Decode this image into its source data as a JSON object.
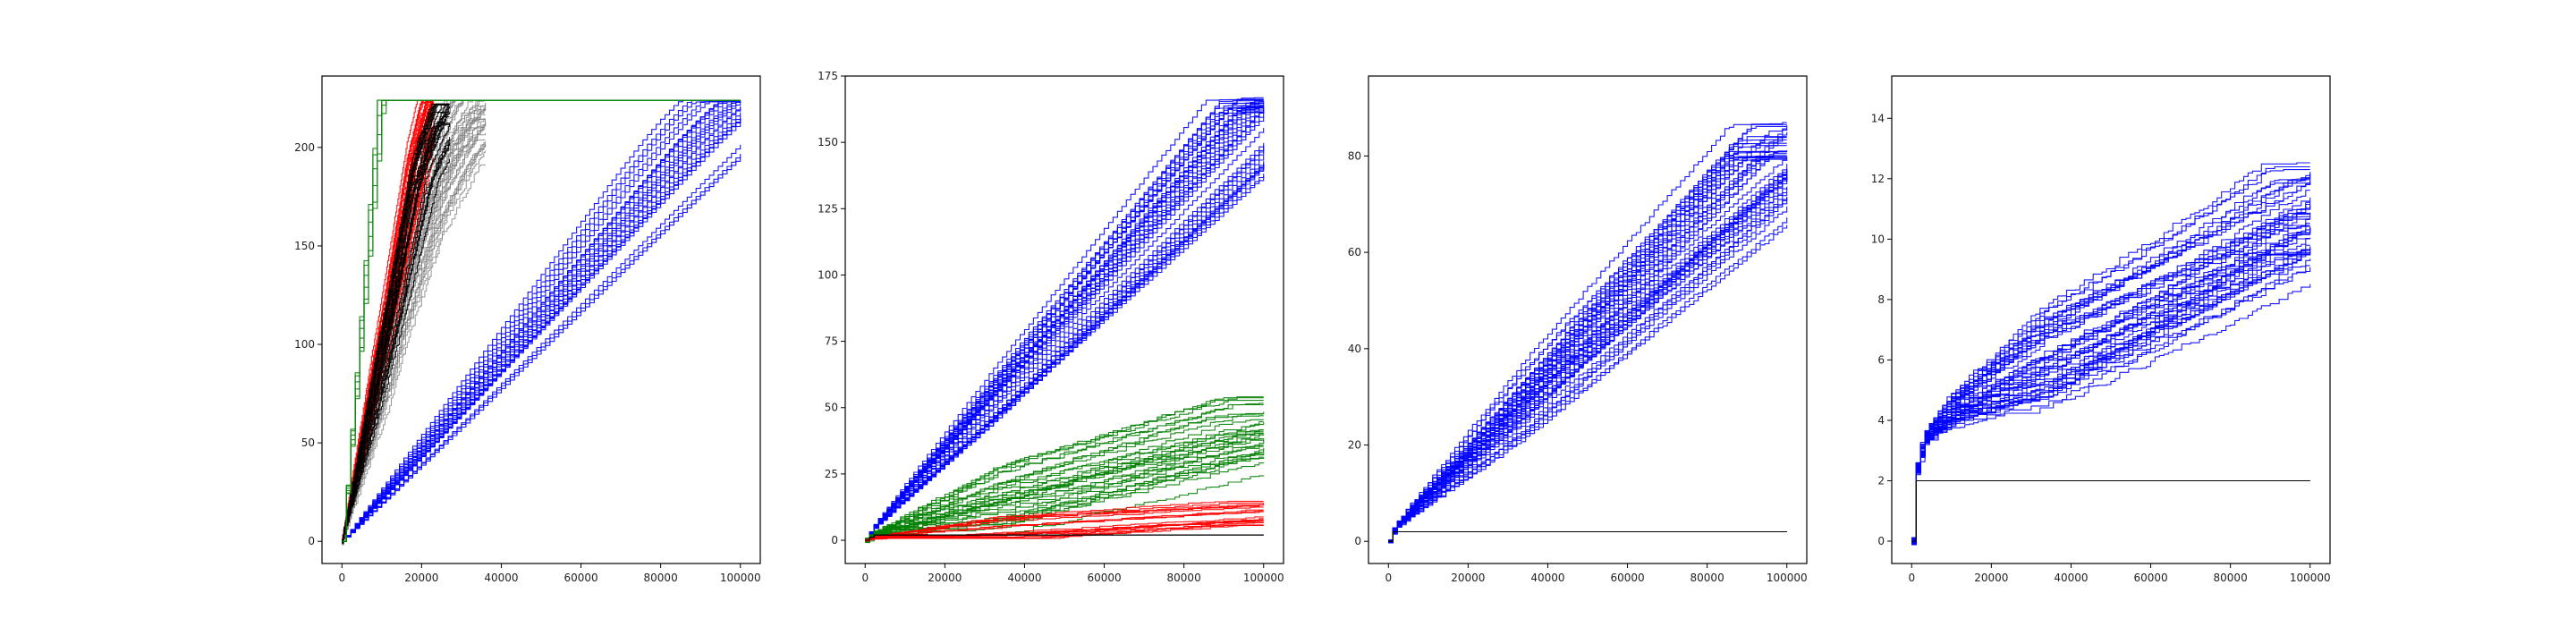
{
  "colors": {
    "blue": "#0000ff",
    "green": "#008000",
    "red": "#ff0000",
    "black": "#000000",
    "gray": "#808080",
    "background": "#ffffff"
  },
  "chart_data": [
    {
      "type": "line",
      "title": "",
      "xlabel": "",
      "ylabel": "",
      "grid": false,
      "xlim": [
        -5000,
        105000
      ],
      "ylim": [
        -11.25,
        236.25
      ],
      "x_ticks": [
        0,
        20000,
        40000,
        60000,
        80000,
        100000
      ],
      "y_ticks": [
        0,
        50,
        100,
        150,
        200
      ],
      "x_tick_labels": [
        "0",
        "20000",
        "40000",
        "60000",
        "80000",
        "100000"
      ],
      "y_tick_labels": [
        "0",
        "50",
        "100",
        "150",
        "200"
      ],
      "series_groups": [
        {
          "color": "blue",
          "count": 25,
          "x": [
            0,
            20000,
            40000,
            60000,
            80000,
            88000,
            94000,
            98000,
            100000
          ],
          "y": [
            0,
            46,
            92,
            138,
            184,
            202,
            214,
            221,
            224
          ],
          "spread": 1
        },
        {
          "color": "gray",
          "count": 40,
          "x": [
            0,
            14000,
            22000,
            30000,
            36000
          ],
          "y": [
            0,
            120,
            175,
            210,
            224
          ],
          "spread": 22
        },
        {
          "color": "red",
          "count": 30,
          "x": [
            0,
            12000,
            19000,
            23000
          ],
          "y": [
            0,
            120,
            195,
            224
          ],
          "spread": 8
        },
        {
          "color": "black",
          "count": 25,
          "x": [
            0,
            13000,
            20000,
            27000
          ],
          "y": [
            0,
            118,
            188,
            222
          ],
          "spread": 14
        },
        {
          "color": "green",
          "count": 6,
          "x": [
            0,
            9000,
            100000
          ],
          "y": [
            0,
            224,
            224
          ],
          "spread": 1
        }
      ]
    },
    {
      "type": "line",
      "title": "",
      "xlabel": "",
      "ylabel": "",
      "grid": false,
      "xlim": [
        -5000,
        105000
      ],
      "ylim": [
        -8.75,
        175
      ],
      "x_ticks": [
        0,
        20000,
        40000,
        60000,
        80000,
        100000
      ],
      "y_ticks": [
        0,
        25,
        50,
        75,
        100,
        125,
        150,
        175
      ],
      "x_tick_labels": [
        "0",
        "20000",
        "40000",
        "60000",
        "80000",
        "100000"
      ],
      "y_tick_labels": [
        "0",
        "25",
        "50",
        "75",
        "100",
        "125",
        "150",
        "175"
      ],
      "series_groups": [
        {
          "color": "blue",
          "count": 40,
          "x": [
            0,
            2000,
            100000
          ],
          "y": [
            0,
            5,
            164
          ],
          "spread": 3
        },
        {
          "color": "green",
          "count": 30,
          "x": [
            0,
            2000,
            100000
          ],
          "y": [
            0,
            2,
            42
          ],
          "spread": 12
        },
        {
          "color": "red",
          "count": 20,
          "x": [
            0,
            2000,
            100000
          ],
          "y": [
            0,
            1,
            10
          ],
          "spread": 5
        },
        {
          "color": "black",
          "count": 4,
          "x": [
            0,
            2000,
            100000
          ],
          "y": [
            0,
            2,
            2
          ],
          "spread": 0
        }
      ]
    },
    {
      "type": "line",
      "title": "",
      "xlabel": "",
      "ylabel": "",
      "grid": false,
      "xlim": [
        -5000,
        105000
      ],
      "ylim": [
        -4.6,
        96.6
      ],
      "x_ticks": [
        0,
        20000,
        40000,
        60000,
        80000,
        100000
      ],
      "y_ticks": [
        0,
        20,
        40,
        60,
        80
      ],
      "x_tick_labels": [
        "0",
        "20000",
        "40000",
        "60000",
        "80000",
        "100000"
      ],
      "y_tick_labels": [
        "0",
        "20",
        "40",
        "60",
        "80"
      ],
      "series_groups": [
        {
          "color": "blue",
          "count": 45,
          "x": [
            0,
            1500,
            5000,
            100000
          ],
          "y": [
            0,
            3,
            6,
            83
          ],
          "spread": 4
        },
        {
          "color": "red",
          "count": 3,
          "x": [
            0,
            800,
            100000
          ],
          "y": [
            0,
            2,
            2
          ],
          "spread": 0
        },
        {
          "color": "green",
          "count": 3,
          "x": [
            0,
            800,
            100000
          ],
          "y": [
            0,
            2,
            2
          ],
          "spread": 0
        },
        {
          "color": "black",
          "count": 3,
          "x": [
            0,
            800,
            100000
          ],
          "y": [
            0,
            2,
            2
          ],
          "spread": 0
        }
      ]
    },
    {
      "type": "line",
      "title": "",
      "xlabel": "",
      "ylabel": "",
      "grid": false,
      "xlim": [
        -5000,
        105000
      ],
      "ylim": [
        -0.74,
        15.4
      ],
      "x_ticks": [
        0,
        20000,
        40000,
        60000,
        80000,
        100000
      ],
      "y_ticks": [
        0,
        2,
        4,
        6,
        8,
        10,
        12,
        14
      ],
      "x_tick_labels": [
        "0",
        "20000",
        "40000",
        "60000",
        "80000",
        "100000"
      ],
      "y_tick_labels": [
        "0",
        "2",
        "4",
        "6",
        "8",
        "10",
        "12",
        "14"
      ],
      "series_groups": [
        {
          "color": "blue",
          "count": 45,
          "x": [
            0,
            300,
            3000,
            10000,
            20000,
            40000,
            60000,
            80000,
            100000
          ],
          "y": [
            0,
            2,
            3.4,
            4.3,
            5,
            6.4,
            7.8,
            9.3,
            10.9
          ],
          "spread": 1.6
        },
        {
          "color": "red",
          "count": 5,
          "x": [
            0,
            300,
            100000
          ],
          "y": [
            0,
            2,
            2
          ],
          "spread": 0
        },
        {
          "color": "green",
          "count": 3,
          "x": [
            0,
            300,
            100000
          ],
          "y": [
            0,
            2,
            2
          ],
          "spread": 0
        },
        {
          "color": "black",
          "count": 3,
          "x": [
            0,
            300,
            100000
          ],
          "y": [
            0,
            2,
            2
          ],
          "spread": 0
        }
      ]
    }
  ]
}
